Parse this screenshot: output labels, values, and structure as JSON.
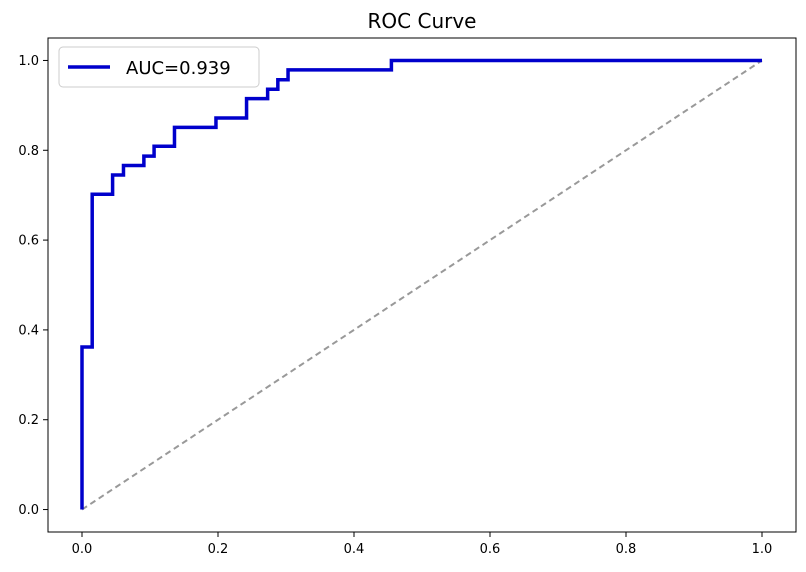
{
  "chart_data": {
    "type": "line",
    "title": "ROC Curve",
    "xlabel": "",
    "ylabel": "",
    "xlim": [
      -0.05,
      1.05
    ],
    "ylim": [
      -0.05,
      1.05
    ],
    "grid": false,
    "legend_position": "top-left",
    "x_ticks": [
      "0.0",
      "0.2",
      "0.4",
      "0.6",
      "0.8",
      "1.0"
    ],
    "y_ticks": [
      "0.0",
      "0.2",
      "0.4",
      "0.6",
      "0.8",
      "1.0"
    ],
    "series": [
      {
        "name": "AUC=0.939",
        "color": "#0000cc",
        "style": "solid",
        "points": [
          [
            0.0,
            0.0
          ],
          [
            0.0,
            0.362
          ],
          [
            0.015,
            0.362
          ],
          [
            0.015,
            0.702
          ],
          [
            0.045,
            0.702
          ],
          [
            0.045,
            0.745
          ],
          [
            0.061,
            0.745
          ],
          [
            0.061,
            0.766
          ],
          [
            0.091,
            0.766
          ],
          [
            0.091,
            0.787
          ],
          [
            0.106,
            0.787
          ],
          [
            0.106,
            0.809
          ],
          [
            0.136,
            0.809
          ],
          [
            0.136,
            0.851
          ],
          [
            0.197,
            0.851
          ],
          [
            0.197,
            0.872
          ],
          [
            0.242,
            0.872
          ],
          [
            0.242,
            0.915
          ],
          [
            0.273,
            0.915
          ],
          [
            0.273,
            0.936
          ],
          [
            0.288,
            0.936
          ],
          [
            0.288,
            0.957
          ],
          [
            0.303,
            0.957
          ],
          [
            0.303,
            0.979
          ],
          [
            0.455,
            0.979
          ],
          [
            0.455,
            1.0
          ],
          [
            1.0,
            1.0
          ]
        ]
      }
    ],
    "reference_line": {
      "color": "#999999",
      "style": "dashed",
      "points": [
        [
          0.0,
          0.0
        ],
        [
          1.0,
          1.0
        ]
      ]
    }
  }
}
